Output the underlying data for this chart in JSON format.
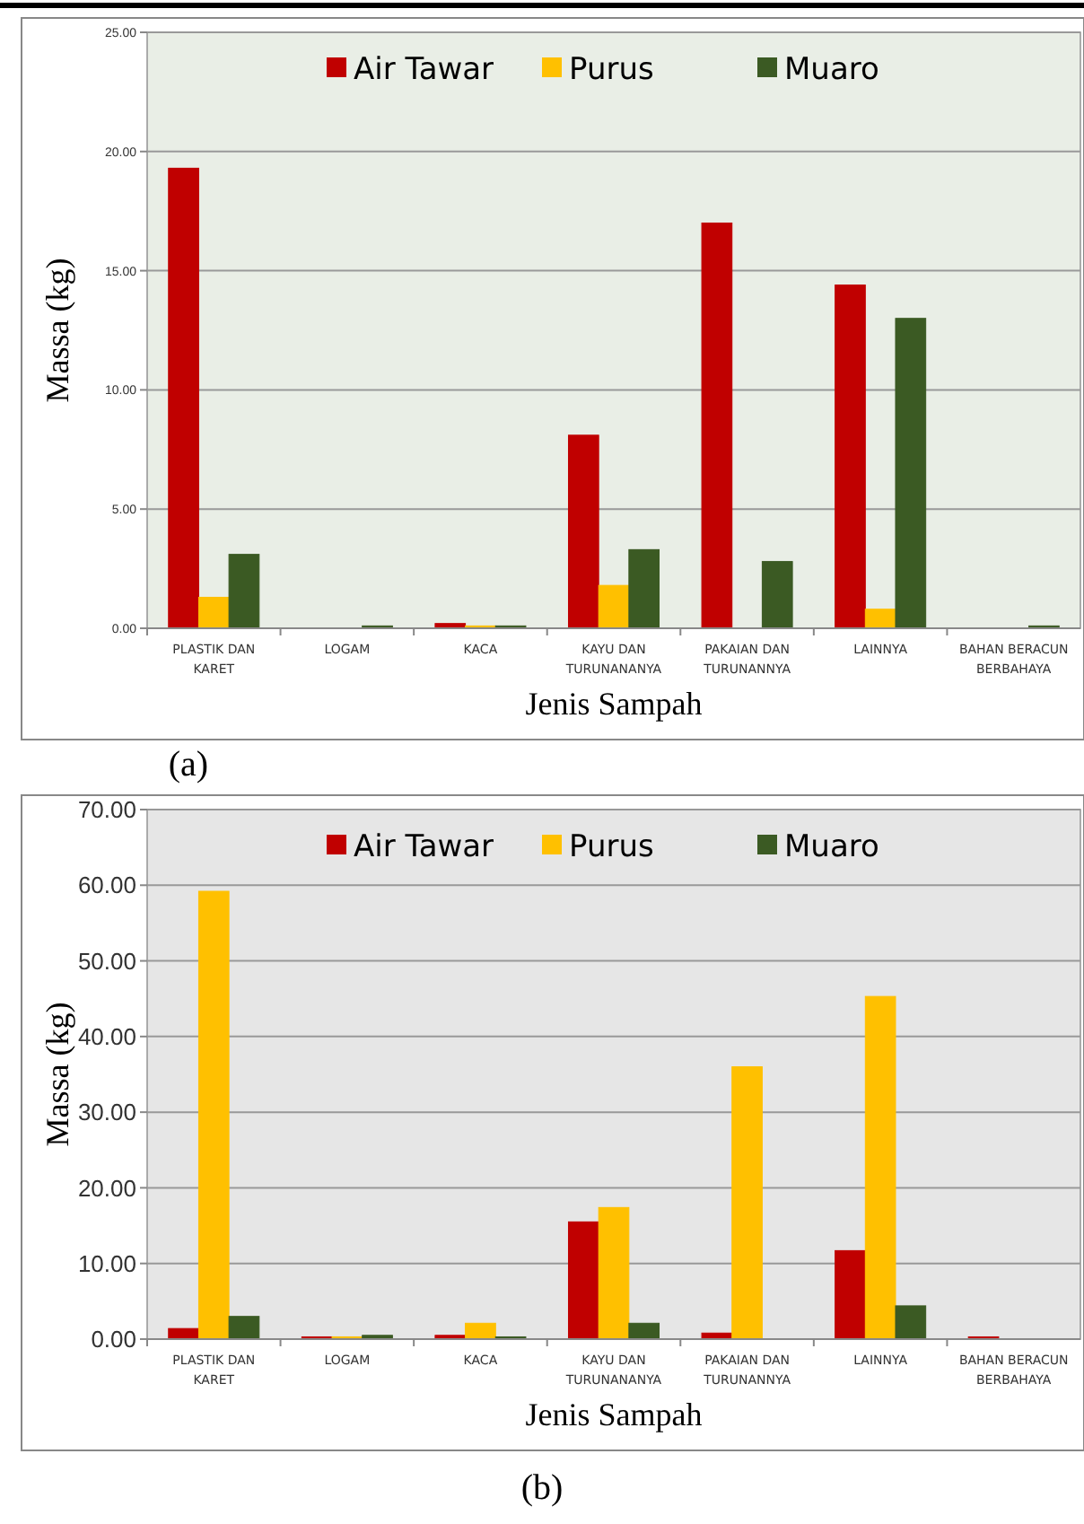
{
  "chart_data": [
    {
      "type": "bar",
      "xlabel": "Jenis Sampah",
      "ylabel": "Massa (kg)",
      "annotations": [
        "(a)"
      ],
      "categories": [
        "PLASTIK DAN KARET",
        "LOGAM",
        "KACA",
        "KAYU DAN TURUNANANYA",
        "PAKAIAN DAN TURUNANNYA",
        "LAINNYA",
        "BAHAN BERACUN BERBAHAYA"
      ],
      "series": [
        {
          "name": "Air Tawar",
          "color": "#c00000",
          "values": [
            19.3,
            0,
            0.2,
            8.1,
            17.0,
            14.4,
            0
          ]
        },
        {
          "name": "Purus",
          "color": "#ffc000",
          "values": [
            1.3,
            0,
            0.1,
            1.8,
            0,
            0.8,
            0
          ]
        },
        {
          "name": "Muaro",
          "color": "#3b5a23",
          "values": [
            3.1,
            0.1,
            0.1,
            3.3,
            2.8,
            13.0,
            0.1
          ]
        }
      ],
      "ylim": [
        0,
        25
      ],
      "yticks": [
        {
          "value": 0,
          "label": "0.00"
        },
        {
          "value": 5,
          "label": "5.00"
        },
        {
          "value": 10,
          "label": "10.00"
        },
        {
          "value": 15,
          "label": "15.00"
        },
        {
          "value": 20,
          "label": "20.00"
        },
        {
          "value": 25,
          "label": "25.00"
        }
      ],
      "grid": "y",
      "legend": "top"
    },
    {
      "type": "bar",
      "xlabel": "Jenis Sampah",
      "ylabel": "Massa (kg)",
      "annotations": [
        "(b)"
      ],
      "categories": [
        "PLASTIK DAN KARET",
        "LOGAM",
        "KACA",
        "KAYU DAN TURUNANANYA",
        "PAKAIAN DAN TURUNANNYA",
        "LAINNYA",
        "BAHAN BERACUN BERBAHAYA"
      ],
      "series": [
        {
          "name": "Air Tawar",
          "color": "#c00000",
          "values": [
            1.4,
            0.3,
            0.5,
            15.5,
            0.8,
            11.7,
            0.3
          ]
        },
        {
          "name": "Purus",
          "color": "#ffc000",
          "values": [
            59.2,
            0.3,
            2.1,
            17.4,
            36.0,
            45.3,
            0
          ]
        },
        {
          "name": "Muaro",
          "color": "#3b5a23",
          "values": [
            3.0,
            0.5,
            0.3,
            2.1,
            0,
            4.4,
            0
          ]
        }
      ],
      "ylim": [
        0,
        70
      ],
      "yticks": [
        {
          "value": 0,
          "label": "0.00"
        },
        {
          "value": 10,
          "label": "10.00"
        },
        {
          "value": 20,
          "label": "20.00"
        },
        {
          "value": 30,
          "label": "30.00"
        },
        {
          "value": 40,
          "label": "40.00"
        },
        {
          "value": 50,
          "label": "50.00"
        },
        {
          "value": 60,
          "label": "60.00"
        },
        {
          "value": 70,
          "label": "70.00"
        }
      ],
      "grid": "y",
      "legend": "top"
    }
  ]
}
